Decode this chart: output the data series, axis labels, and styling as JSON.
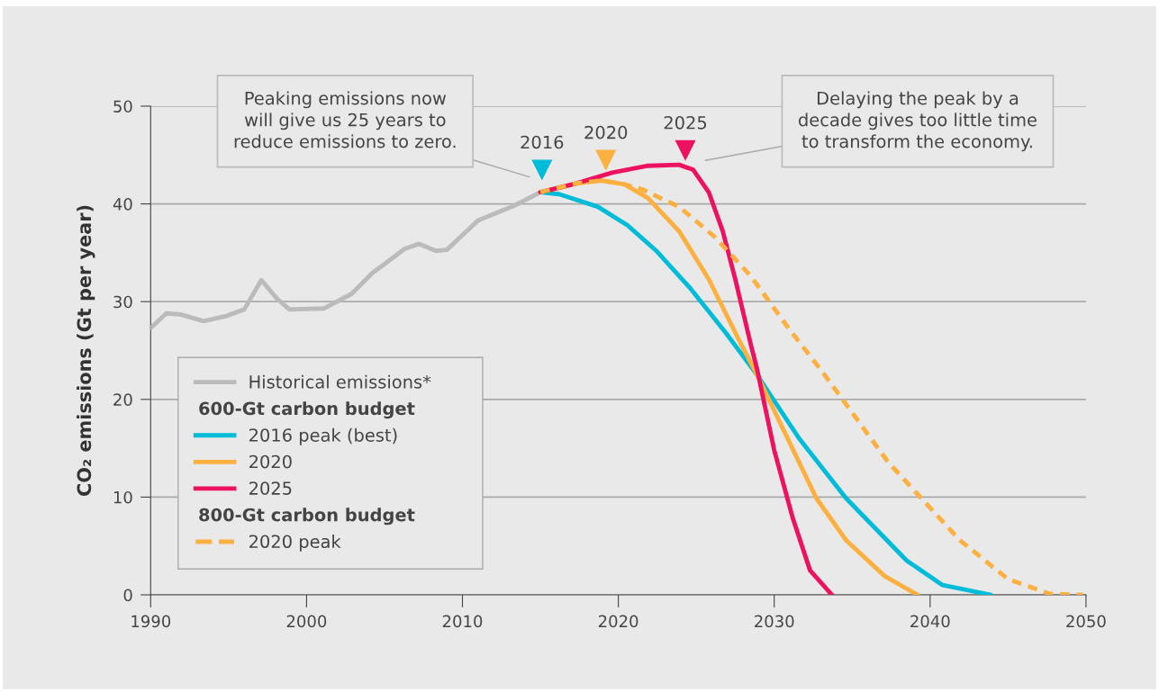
{
  "chart_data": {
    "type": "line",
    "ylabel": "CO₂ emissions (Gt per year)",
    "xlim": [
      1990,
      2050
    ],
    "xticks": [
      1990,
      2000,
      2010,
      2020,
      2030,
      2040,
      2050
    ],
    "ylim": [
      0,
      50
    ],
    "yticks": [
      0,
      10,
      20,
      30,
      40,
      50
    ],
    "grid": "y",
    "legend": "bottom left",
    "marker": "none",
    "series": [
      {
        "name": "Historical emissions*",
        "color": "#bbbbbb",
        "line_style": "solid",
        "x": [
          1990,
          1991.0,
          1991.9,
          1993.4,
          1994.8,
          1996.0,
          1997.1,
          1998.1,
          1998.9,
          2001.1,
          2002.9,
          2004.2,
          2006.3,
          2007.2,
          2008.3,
          2009.0,
          2011.0,
          2013.3,
          2015.0
        ],
        "values": [
          27.3,
          28.8,
          28.7,
          28.0,
          28.5,
          29.2,
          32.2,
          30.3,
          29.2,
          29.3,
          30.8,
          32.9,
          35.4,
          35.9,
          35.2,
          35.3,
          38.3,
          39.8,
          41.2
        ]
      },
      {
        "name": "2016 peak (best)",
        "color": "#00bcd8",
        "line_style": "solid",
        "x": [
          2015.0,
          2016.2,
          2018.7,
          2020.6,
          2022.5,
          2024.6,
          2026.9,
          2028.9,
          2031.6,
          2034.6,
          2038.5,
          2040.8,
          2043.9
        ],
        "values": [
          41.2,
          41.0,
          39.7,
          37.8,
          35.1,
          31.4,
          26.8,
          22.5,
          16.0,
          9.9,
          3.5,
          1.0,
          0
        ]
      },
      {
        "name": "2020",
        "color": "#fbb040",
        "line_style": "solid",
        "x": [
          2015.0,
          2017.3,
          2018.9,
          2020.4,
          2021.9,
          2023.9,
          2025.8,
          2027.7,
          2028.9,
          2032.7,
          2034.6,
          2037.1,
          2039.2
        ],
        "values": [
          41.2,
          42.1,
          42.4,
          42.0,
          40.6,
          37.2,
          32.3,
          26.2,
          22.5,
          9.9,
          5.6,
          1.9,
          0
        ]
      },
      {
        "name": "2025",
        "color": "#ec1260",
        "line_style": "solid",
        "x": [
          2015.0,
          2017.3,
          2019.6,
          2021.9,
          2023.9,
          2024.8,
          2025.8,
          2026.7,
          2027.5,
          2028.5,
          2028.9,
          2030.0,
          2031.2,
          2032.3,
          2033.7
        ],
        "values": [
          41.2,
          42.1,
          43.2,
          43.9,
          44.0,
          43.5,
          41.2,
          37.2,
          32.3,
          25.6,
          23.1,
          14.8,
          7.8,
          2.5,
          0
        ]
      },
      {
        "name": "2020 peak",
        "color": "#fbb040",
        "line_style": "dashed",
        "x": [
          2015.0,
          2017.3,
          2018.9,
          2020.4,
          2021.5,
          2023.9,
          2026.2,
          2028.5,
          2031.0,
          2033.1,
          2037.3,
          2041.9,
          2045.0,
          2047.7,
          2049.8
        ],
        "values": [
          41.2,
          42.1,
          42.4,
          42.0,
          41.5,
          39.7,
          36.6,
          32.6,
          27.1,
          22.8,
          13.6,
          5.6,
          1.6,
          0.1,
          0
        ]
      }
    ],
    "annotations": [
      "Peaking emissions now\nwill give us 25 years to\nreduce emissions to zero.",
      "Delaying the peak by a\ndecade gives too little time\nto transform the economy.",
      {
        "text": "2016",
        "x": 2015.1,
        "y": 43.5
      },
      {
        "text": "2020",
        "x": 2019.2,
        "y": 44.5
      },
      {
        "text": "2025",
        "x": 2024.3,
        "y": 45.5
      },
      "600-Gt carbon budget",
      "800-Gt carbon budget"
    ]
  }
}
